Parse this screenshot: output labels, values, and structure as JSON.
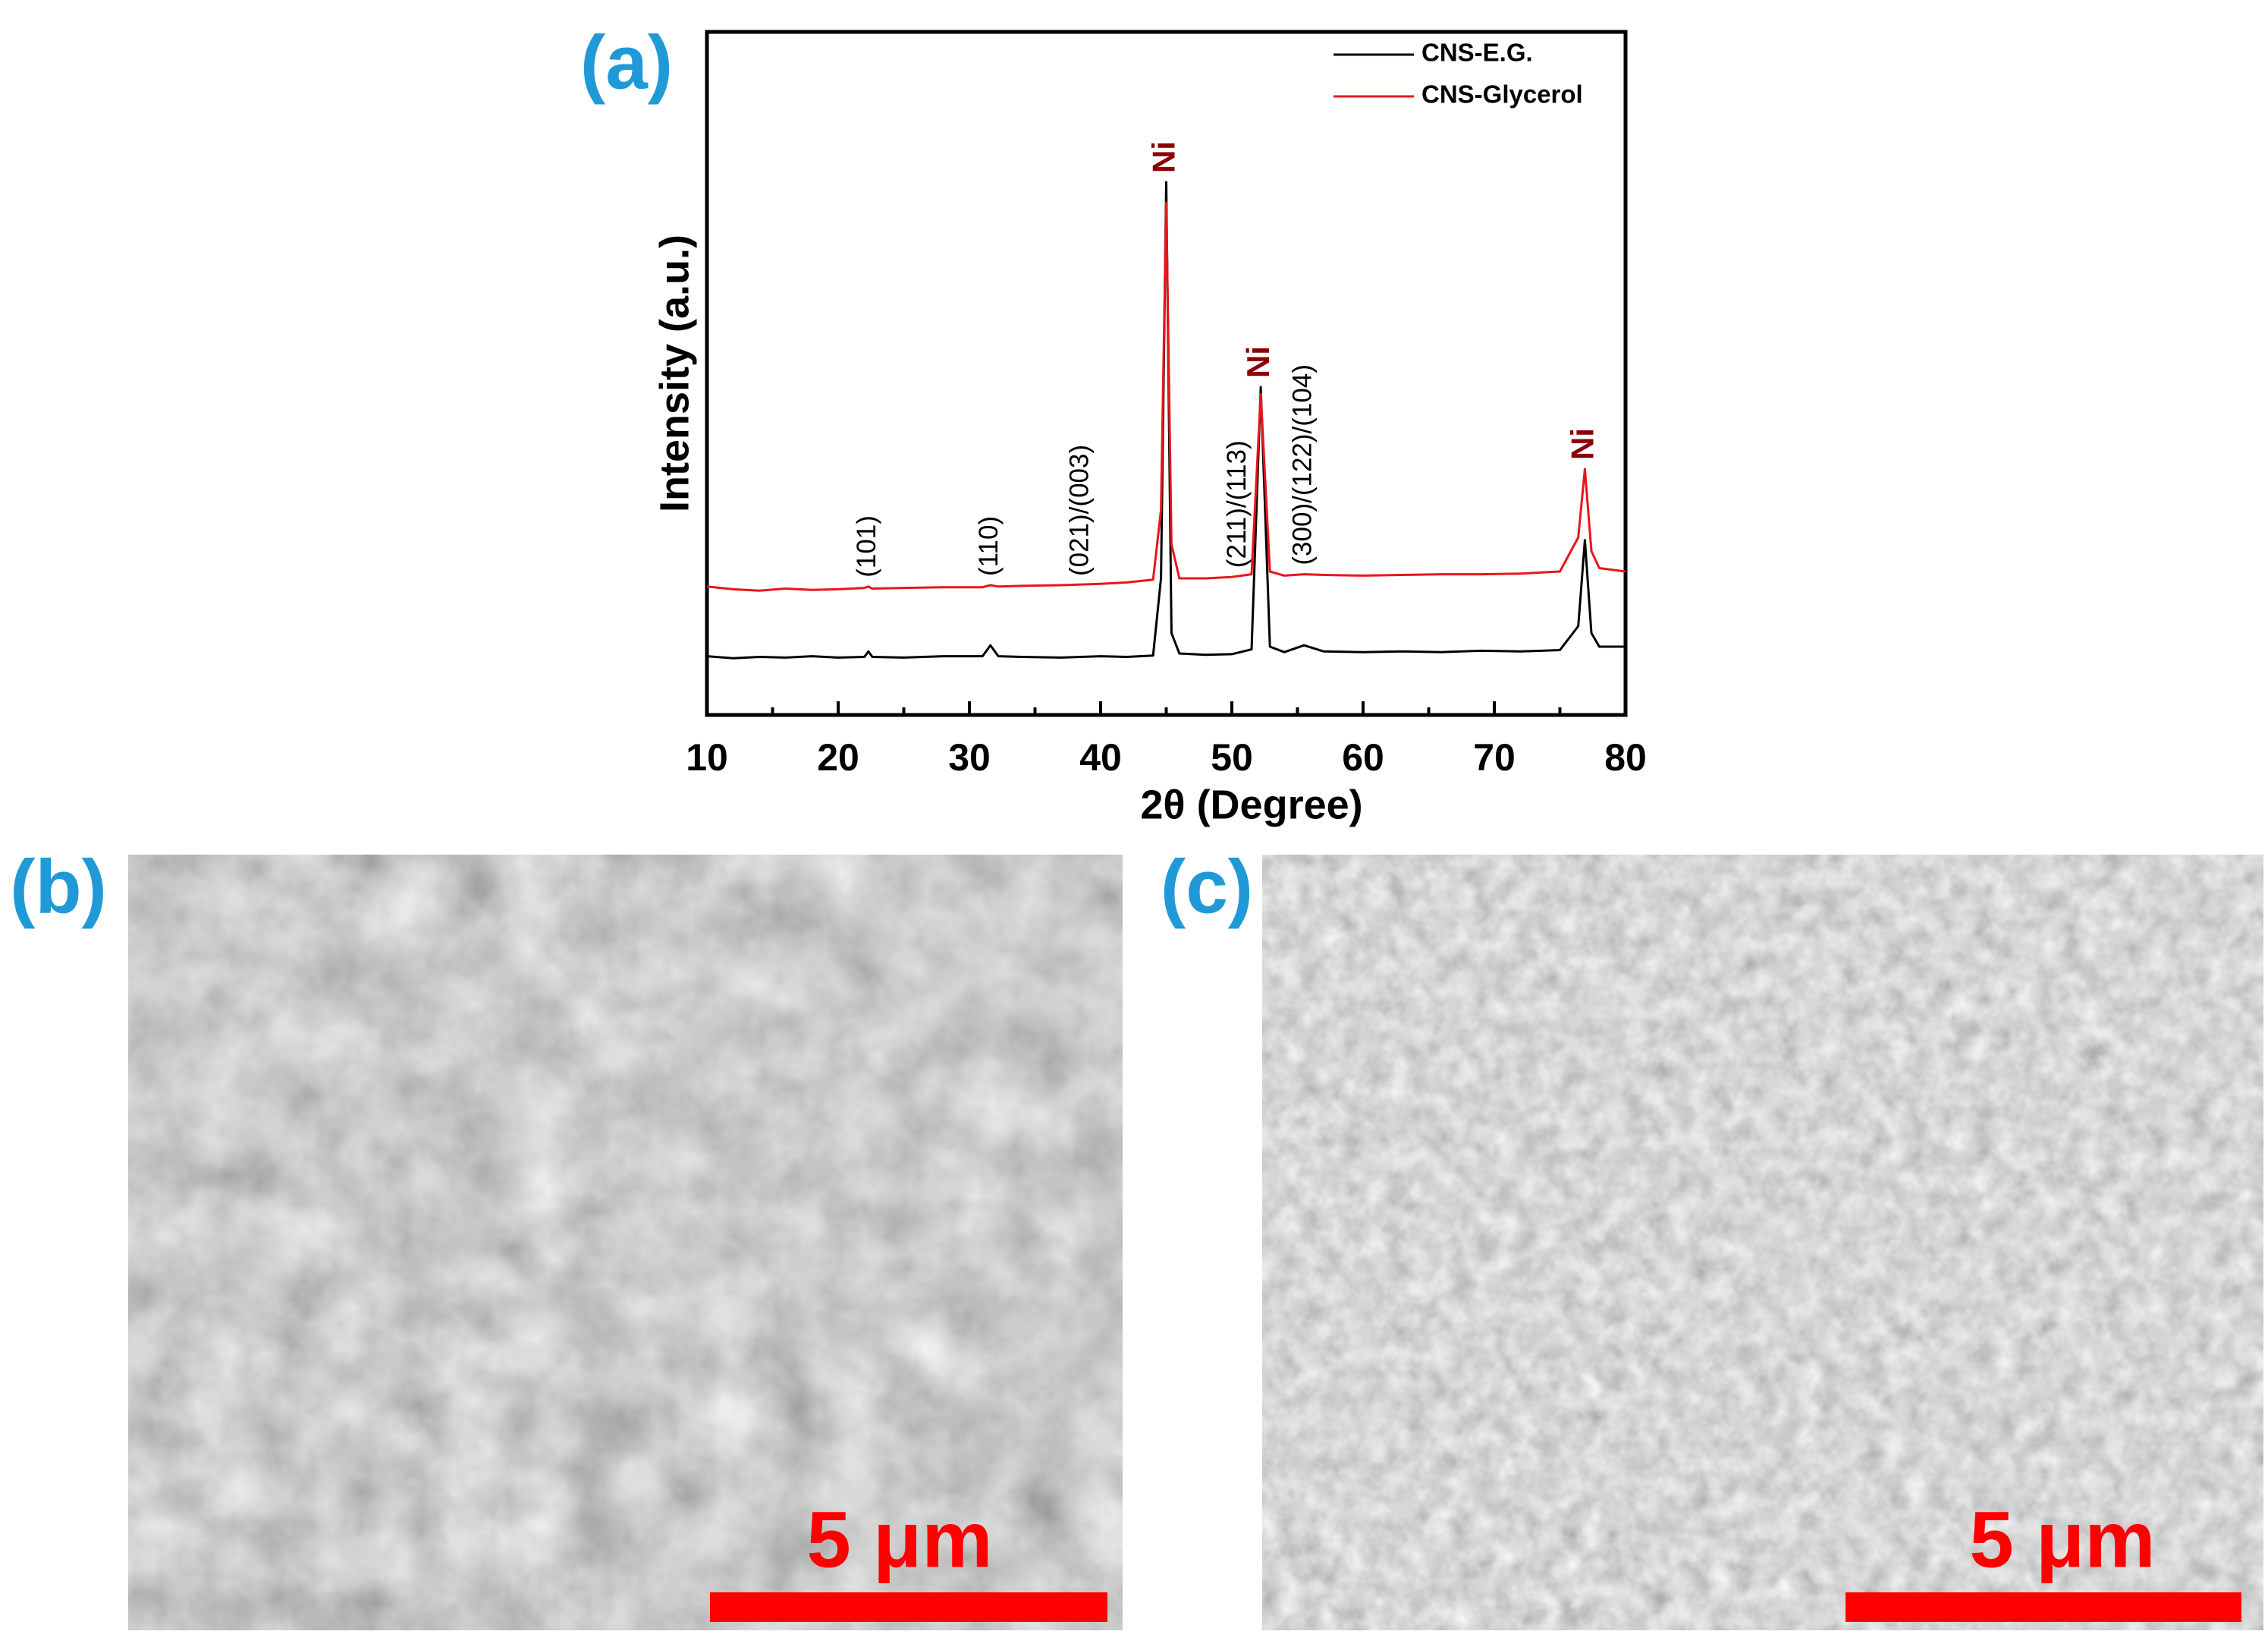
{
  "chart_data": {
    "type": "line",
    "x_label": "2θ (Degree)",
    "y_label": "Intensity (a.u.)",
    "panel_label": "(a)",
    "x": [
      10,
      12,
      14,
      16,
      18,
      20,
      22,
      22.3,
      22.6,
      25,
      28,
      31,
      31.6,
      32.2,
      34,
      37,
      40,
      42,
      44,
      44.6,
      45.0,
      45.4,
      46,
      48,
      50,
      51.5,
      52.2,
      52.9,
      54,
      55.5,
      57,
      60,
      63,
      66,
      69,
      72,
      75,
      76.4,
      76.9,
      77.4,
      78,
      80
    ],
    "series": [
      {
        "name": "CNS-E.G.",
        "color": "#000000",
        "values": [
          8.6,
          8.3,
          8.5,
          8.4,
          8.6,
          8.4,
          8.5,
          9.3,
          8.5,
          8.4,
          8.6,
          8.6,
          10.2,
          8.6,
          8.5,
          8.4,
          8.6,
          8.5,
          8.7,
          20,
          78,
          12,
          9.0,
          8.8,
          8.9,
          9.6,
          48,
          10,
          9.2,
          10.2,
          9.3,
          9.2,
          9.3,
          9.2,
          9.4,
          9.3,
          9.5,
          13,
          25.6,
          12,
          10,
          10
        ]
      },
      {
        "name": "CNS-Glycerol",
        "color": "#e8161b",
        "values": [
          18.8,
          18.4,
          18.2,
          18.5,
          18.3,
          18.4,
          18.6,
          18.8,
          18.5,
          18.6,
          18.7,
          18.7,
          19.0,
          18.8,
          18.9,
          19.0,
          19.2,
          19.4,
          19.8,
          30,
          75,
          25,
          20,
          20,
          20.2,
          20.6,
          47,
          21,
          20.4,
          20.6,
          20.5,
          20.4,
          20.5,
          20.6,
          20.6,
          20.7,
          21,
          26,
          36,
          24,
          21.5,
          21
        ]
      }
    ],
    "xlim": [
      10,
      80
    ],
    "ylim": [
      0,
      100
    ],
    "xticks": [
      10,
      20,
      30,
      40,
      50,
      60,
      70,
      80
    ],
    "legend": "top-right",
    "annotations": [
      {
        "text": "(101)",
        "x": 22.3,
        "color": "#000000"
      },
      {
        "text": "(110)",
        "x": 31.6,
        "color": "#000000"
      },
      {
        "text": "(021)/(003)",
        "x": 38.5,
        "color": "#000000"
      },
      {
        "text": "(211)/(113)",
        "x": 50.5,
        "color": "#000000"
      },
      {
        "text": "(300)/(122)/(104)",
        "x": 55.5,
        "color": "#000000"
      },
      {
        "text": "Ni",
        "x": 45.0,
        "color": "#8b0000"
      },
      {
        "text": "Ni",
        "x": 52.2,
        "color": "#8b0000"
      },
      {
        "text": "Ni",
        "x": 76.9,
        "color": "#8b0000"
      }
    ]
  },
  "panels": [
    {
      "label": "(b)",
      "scale_bar": "5 μm"
    },
    {
      "label": "(c)",
      "scale_bar": "5 μm"
    }
  ]
}
